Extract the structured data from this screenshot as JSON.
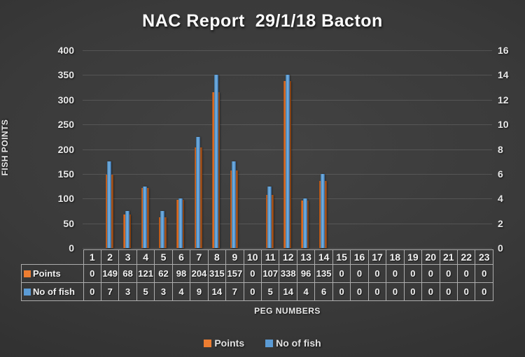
{
  "title": "NAC Report  29/1/18 Bacton",
  "chart_data": {
    "type": "bar",
    "title": "NAC Report  29/1/18 Bacton",
    "xlabel": "PEG NUMBERS",
    "ylabel_left": "FISH POINTS",
    "categories": [
      "1",
      "2",
      "3",
      "4",
      "5",
      "6",
      "7",
      "8",
      "9",
      "10",
      "11",
      "12",
      "13",
      "14",
      "15",
      "16",
      "17",
      "18",
      "19",
      "20",
      "21",
      "22",
      "23"
    ],
    "series": [
      {
        "name": "Points",
        "axis": "left",
        "color": "#ED7D31",
        "values": [
          0,
          149,
          68,
          121,
          62,
          98,
          204,
          315,
          157,
          0,
          107,
          338,
          96,
          135,
          0,
          0,
          0,
          0,
          0,
          0,
          0,
          0,
          0
        ]
      },
      {
        "name": "No of fish",
        "axis": "right",
        "color": "#5B9BD5",
        "values": [
          0,
          7,
          3,
          5,
          3,
          4,
          9,
          14,
          7,
          0,
          5,
          14,
          4,
          6,
          0,
          0,
          0,
          0,
          0,
          0,
          0,
          0,
          0
        ]
      }
    ],
    "left_axis": {
      "min": 0,
      "max": 400,
      "ticks": [
        0,
        50,
        100,
        150,
        200,
        250,
        300,
        350,
        400
      ]
    },
    "right_axis": {
      "min": 0,
      "max": 16,
      "ticks": [
        0,
        2,
        4,
        6,
        8,
        10,
        12,
        14,
        16
      ]
    },
    "grid": true,
    "legend_position": "bottom",
    "colors": {
      "points": "#ED7D31",
      "fish": "#5B9BD5"
    }
  }
}
